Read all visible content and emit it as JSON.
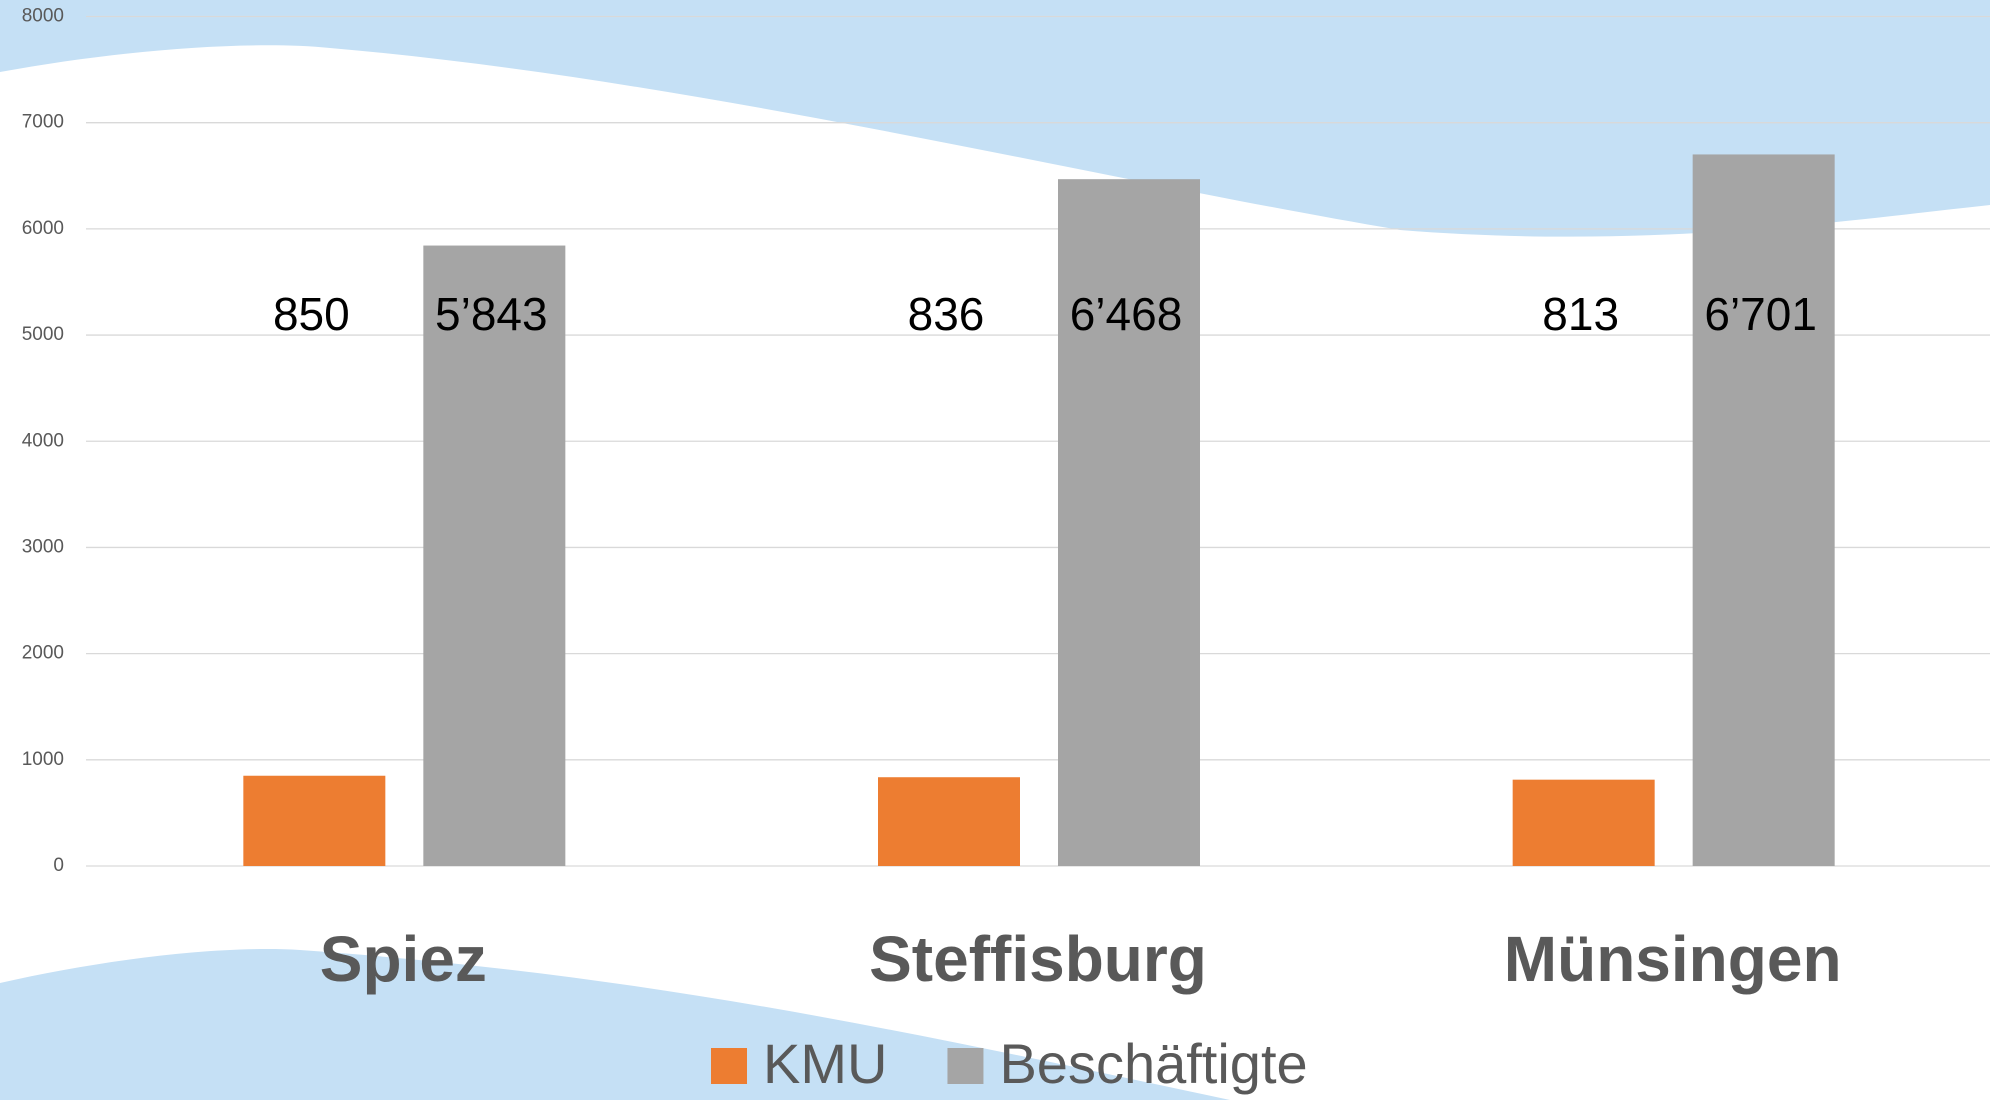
{
  "chart_data": {
    "type": "bar",
    "categories": [
      "Spiez",
      "Steffisburg",
      "Münsingen"
    ],
    "series": [
      {
        "name": "KMU",
        "color": "#ed7d31",
        "values": [
          850,
          836,
          813
        ]
      },
      {
        "name": "Beschäftigte",
        "color": "#a5a5a5",
        "values": [
          5843,
          6468,
          6701
        ],
        "value_labels": [
          "5’843",
          "6’468",
          "6’701"
        ]
      }
    ],
    "ylim": [
      0,
      8000
    ],
    "yticks": [
      0,
      1000,
      2000,
      3000,
      4000,
      5000,
      6000,
      7000,
      8000
    ],
    "grid": true,
    "legend": "bottom"
  }
}
